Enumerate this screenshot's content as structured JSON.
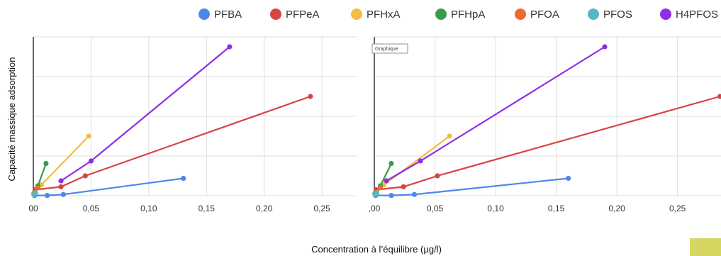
{
  "legend": [
    {
      "name": "PFBA",
      "color": "#4f86ec"
    },
    {
      "name": "PFPeA",
      "color": "#d64541"
    },
    {
      "name": "PFHxA",
      "color": "#f2bd42"
    },
    {
      "name": "PFHpA",
      "color": "#3c9a4d"
    },
    {
      "name": "PFOA",
      "color": "#ee6b2d"
    },
    {
      "name": "PFOS",
      "color": "#55b8c4"
    },
    {
      "name": "H4PFOS",
      "color": "#8e2ee6"
    }
  ],
  "tooltip": {
    "label": "Graphique"
  },
  "chart_data": [
    {
      "type": "line",
      "xlim": [
        0,
        0.28
      ],
      "grid": true,
      "x_tick_labels": [
        "00",
        "0,05",
        "0,10",
        "0,15",
        "0,20",
        "0,25"
      ],
      "x_tick_values": [
        0,
        0.05,
        0.1,
        0.15,
        0.2,
        0.25
      ],
      "xlabel": "Concentration à l’équilibre (µg/l)",
      "ylabel": "Capacité massique adsorption",
      "series": [
        {
          "name": "PFBA",
          "x": [
            0.001,
            0.012,
            0.026,
            0.13
          ],
          "y": [
            0.005,
            0.005,
            0.025,
            0.35
          ]
        },
        {
          "name": "PFPeA",
          "x": [
            0.0015,
            0.024,
            0.045,
            0.24
          ],
          "y": [
            0.12,
            0.18,
            0.4,
            2.0
          ]
        },
        {
          "name": "PFHxA",
          "x": [
            0.001,
            0.007,
            0.048
          ],
          "y": [
            0.05,
            0.22,
            1.2
          ]
        },
        {
          "name": "PFHpA",
          "x": [
            0.0005,
            0.004,
            0.011
          ],
          "y": [
            0.05,
            0.2,
            0.65
          ]
        },
        {
          "name": "PFOA",
          "x": [
            0.001,
            0.004
          ],
          "y": [
            0.06,
            0.16
          ]
        },
        {
          "name": "PFOS",
          "x": [
            0.0005,
            0.002
          ],
          "y": [
            0.02,
            0.06
          ]
        },
        {
          "name": "H4PFOS",
          "x": [
            0.024,
            0.05,
            0.17
          ],
          "y": [
            0.3,
            0.7,
            3.0
          ]
        }
      ]
    },
    {
      "type": "line",
      "xlim": [
        0,
        0.28
      ],
      "grid": true,
      "x_tick_labels": [
        ",00",
        "0,05",
        "0,10",
        "0,15",
        "0,20",
        "0,25"
      ],
      "x_tick_values": [
        0,
        0.05,
        0.1,
        0.15,
        0.2,
        0.25
      ],
      "series": [
        {
          "name": "PFBA",
          "x": [
            0.001,
            0.014,
            0.033,
            0.16
          ],
          "y": [
            0.005,
            0.005,
            0.025,
            0.35
          ]
        },
        {
          "name": "PFPeA",
          "x": [
            0.0015,
            0.024,
            0.052,
            0.285
          ],
          "y": [
            0.12,
            0.18,
            0.4,
            2.0
          ]
        },
        {
          "name": "PFHxA",
          "x": [
            0.001,
            0.008,
            0.062
          ],
          "y": [
            0.05,
            0.22,
            1.2
          ]
        },
        {
          "name": "PFHpA",
          "x": [
            0.0005,
            0.005,
            0.014
          ],
          "y": [
            0.05,
            0.2,
            0.65
          ]
        },
        {
          "name": "PFOA",
          "x": [
            0.001,
            0.005
          ],
          "y": [
            0.06,
            0.16
          ]
        },
        {
          "name": "PFOS",
          "x": [
            0.0005,
            0.002
          ],
          "y": [
            0.02,
            0.06
          ]
        },
        {
          "name": "H4PFOS",
          "x": [
            0.01,
            0.038,
            0.19
          ],
          "y": [
            0.3,
            0.7,
            3.0
          ]
        }
      ]
    }
  ]
}
